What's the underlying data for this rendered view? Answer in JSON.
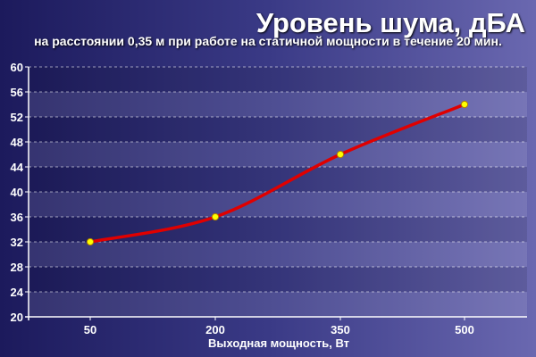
{
  "chart_data": {
    "type": "line",
    "title": "Уровень шума, дБА",
    "subtitle": "на расстоянии 0,35 м при работе на статичной мощности в течение 20 мин.",
    "xlabel": "Выходная мощность, Вт",
    "ylabel": "",
    "categories": [
      "50",
      "200",
      "350",
      "500"
    ],
    "x": [
      50,
      200,
      350,
      500
    ],
    "series": [
      {
        "values": [
          32,
          36,
          46,
          54
        ]
      }
    ],
    "ylim": [
      20,
      60
    ],
    "yticks": [
      20,
      24,
      28,
      32,
      36,
      40,
      44,
      48,
      52,
      56,
      60
    ],
    "grid": true,
    "line_color": "#e00000",
    "marker_color": "#ffff00"
  }
}
